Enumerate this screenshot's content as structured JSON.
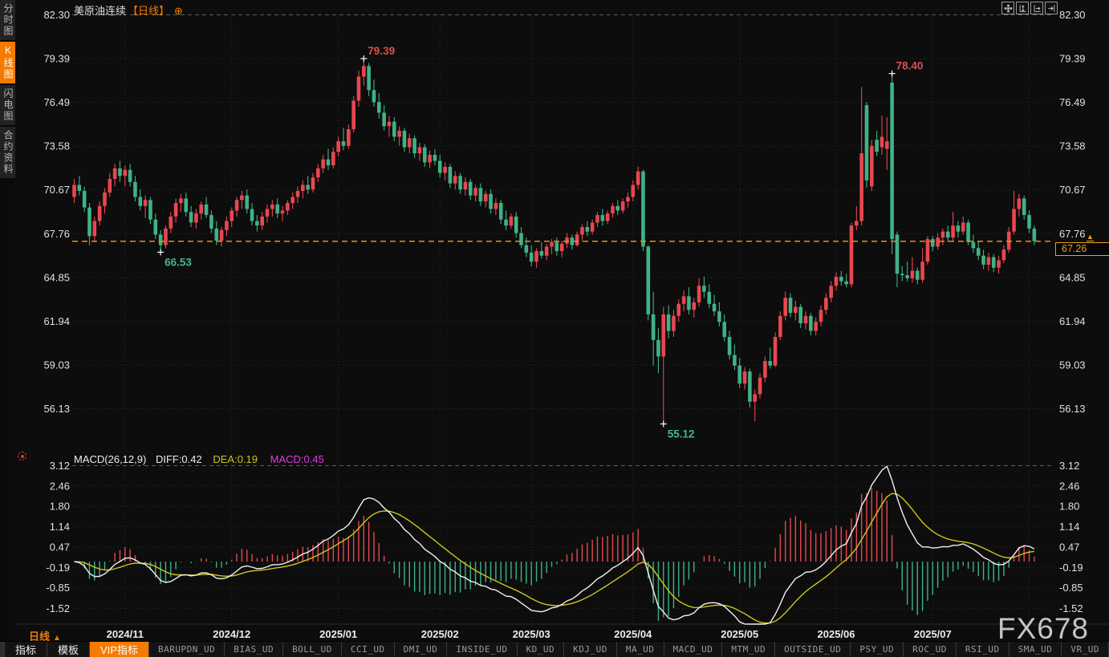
{
  "header": {
    "title": "美原油连续",
    "period_tag": "【日线】",
    "expand_icon": "⊕"
  },
  "sidebar": {
    "tabs": [
      {
        "label": "分时图",
        "active": false
      },
      {
        "label": "K线图",
        "active": true
      },
      {
        "label": "闪电图",
        "active": false
      },
      {
        "label": "合约资料",
        "active": false
      }
    ]
  },
  "toolbar_icons": [
    {
      "name": "pan-crosshair"
    },
    {
      "name": "fit-vertical-axis"
    },
    {
      "name": "fit-horizontal-axis"
    },
    {
      "name": "goto-latest"
    }
  ],
  "macd_header": {
    "name": "MACD(26,12,9)",
    "diff": "DIFF:0.42",
    "dea": "DEA:0.19",
    "macd": "MACD:0.45"
  },
  "price_badge": {
    "value": "67.26",
    "marker": "▲"
  },
  "timeframe_label": {
    "text": "日线",
    "arrow": "▲"
  },
  "watermark": "FX678",
  "bottom_bar": {
    "tabs": [
      {
        "label": "指标",
        "type": "plain"
      },
      {
        "label": "模板",
        "type": "plain"
      },
      {
        "label": "VIP指标",
        "type": "vip"
      },
      {
        "label": "BARUPDN_UD",
        "type": "ud"
      },
      {
        "label": "BIAS_UD",
        "type": "ud"
      },
      {
        "label": "BOLL_UD",
        "type": "ud"
      },
      {
        "label": "CCI_UD",
        "type": "ud"
      },
      {
        "label": "DMI_UD",
        "type": "ud"
      },
      {
        "label": "INSIDE_UD",
        "type": "ud"
      },
      {
        "label": "KD_UD",
        "type": "ud"
      },
      {
        "label": "KDJ_UD",
        "type": "ud"
      },
      {
        "label": "MA_UD",
        "type": "ud"
      },
      {
        "label": "MACD_UD",
        "type": "ud"
      },
      {
        "label": "MTM_UD",
        "type": "ud"
      },
      {
        "label": "OUTSIDE_UD",
        "type": "ud"
      },
      {
        "label": "PSY_UD",
        "type": "ud"
      },
      {
        "label": "ROC_UD",
        "type": "ud"
      },
      {
        "label": "RSI_UD",
        "type": "ud"
      },
      {
        "label": "SMA_UD",
        "type": "ud"
      },
      {
        "label": "VR_UD",
        "type": "ud"
      }
    ]
  },
  "colors": {
    "up": "#e8474f",
    "down": "#3fb286",
    "accent_orange": "#f57a00",
    "current_price_line": "#f08c1e",
    "badge_orange": "#f0a020",
    "diff_line": "#f0f0f0",
    "dea_line": "#cdc51f",
    "macd_value_magenta": "#dd3ddd",
    "annotation_red": "#d95050",
    "annotation_green": "#45b888",
    "grid": "#2d2d2d",
    "separator_dash": "#5e5e5e",
    "axis_text": "#e0e0e0"
  },
  "chart_data": {
    "type": "candlestick+macd",
    "symbol": "美原油连续",
    "period": "日线",
    "price_axis_ticks": [
      "82.30",
      "79.39",
      "76.49",
      "73.58",
      "70.67",
      "67.76",
      "64.85",
      "61.94",
      "59.03",
      "56.13"
    ],
    "macd_axis_ticks": [
      "3.12",
      "2.46",
      "1.80",
      "1.14",
      "0.47",
      "-0.19",
      "-0.85",
      "-1.52"
    ],
    "x_axis_labels": [
      {
        "label": "2024/11",
        "index": 10
      },
      {
        "label": "2024/12",
        "index": 31
      },
      {
        "label": "2025/01",
        "index": 52
      },
      {
        "label": "2025/02",
        "index": 72
      },
      {
        "label": "2025/03",
        "index": 90
      },
      {
        "label": "2025/04",
        "index": 110
      },
      {
        "label": "2025/05",
        "index": 131
      },
      {
        "label": "2025/06",
        "index": 150
      },
      {
        "label": "2025/07",
        "index": 169
      },
      {
        "label": "",
        "index": 188
      }
    ],
    "current_price": 67.26,
    "annotations": [
      {
        "text": "79.39",
        "index": 57,
        "price": 79.39,
        "color": "#d95050",
        "pos": "above"
      },
      {
        "text": "66.53",
        "index": 17,
        "price": 66.53,
        "color": "#45b888",
        "pos": "below"
      },
      {
        "text": "78.40",
        "index": 161,
        "price": 78.4,
        "color": "#d95050",
        "pos": "above"
      },
      {
        "text": "55.12",
        "index": 116,
        "price": 55.12,
        "color": "#45b888",
        "pos": "below"
      }
    ],
    "macd_params": {
      "slow": 26,
      "fast": 12,
      "signal": 9,
      "diff": 0.42,
      "dea": 0.19,
      "macd": 0.45
    },
    "ohlc": [
      [
        70.2,
        71.4,
        69.8,
        71.0
      ],
      [
        71.0,
        71.6,
        70.3,
        70.6
      ],
      [
        70.6,
        70.9,
        69.2,
        69.5
      ],
      [
        69.5,
        69.8,
        67.0,
        67.6
      ],
      [
        67.6,
        68.9,
        67.2,
        68.6
      ],
      [
        68.6,
        69.9,
        68.3,
        69.6
      ],
      [
        69.6,
        70.8,
        69.1,
        70.5
      ],
      [
        70.5,
        71.8,
        70.2,
        71.4
      ],
      [
        71.4,
        72.4,
        70.9,
        72.1
      ],
      [
        72.1,
        72.6,
        71.2,
        71.6
      ],
      [
        71.6,
        72.3,
        70.9,
        72.0
      ],
      [
        72.0,
        72.4,
        70.9,
        71.2
      ],
      [
        71.2,
        71.6,
        69.9,
        70.2
      ],
      [
        70.2,
        70.7,
        69.3,
        69.6
      ],
      [
        69.6,
        70.3,
        68.8,
        70.0
      ],
      [
        70.0,
        70.2,
        68.4,
        68.7
      ],
      [
        68.7,
        69.1,
        67.4,
        67.7
      ],
      [
        67.7,
        68.0,
        66.53,
        67.0
      ],
      [
        67.0,
        68.3,
        66.8,
        68.1
      ],
      [
        68.1,
        69.2,
        67.8,
        68.9
      ],
      [
        68.9,
        70.1,
        68.5,
        69.8
      ],
      [
        69.8,
        70.4,
        69.2,
        70.1
      ],
      [
        70.1,
        70.5,
        68.9,
        69.2
      ],
      [
        69.2,
        69.6,
        68.2,
        68.5
      ],
      [
        68.5,
        69.4,
        68.1,
        69.1
      ],
      [
        69.1,
        69.9,
        68.7,
        69.7
      ],
      [
        69.7,
        70.2,
        68.8,
        69.0
      ],
      [
        69.0,
        69.3,
        67.8,
        68.1
      ],
      [
        68.1,
        68.6,
        67.0,
        67.3
      ],
      [
        67.3,
        68.2,
        66.9,
        68.0
      ],
      [
        68.0,
        68.9,
        67.6,
        68.6
      ],
      [
        68.6,
        69.5,
        68.2,
        69.3
      ],
      [
        69.3,
        70.2,
        68.9,
        70.0
      ],
      [
        70.0,
        70.6,
        69.4,
        70.3
      ],
      [
        70.3,
        70.7,
        69.1,
        69.4
      ],
      [
        69.4,
        69.8,
        68.3,
        68.6
      ],
      [
        68.6,
        69.0,
        67.9,
        68.3
      ],
      [
        68.3,
        69.2,
        68.0,
        68.9
      ],
      [
        68.9,
        69.7,
        68.5,
        69.4
      ],
      [
        69.4,
        70.0,
        68.9,
        69.7
      ],
      [
        69.7,
        70.1,
        68.8,
        69.1
      ],
      [
        69.1,
        69.6,
        68.6,
        69.3
      ],
      [
        69.3,
        70.0,
        69.0,
        69.8
      ],
      [
        69.8,
        70.5,
        69.4,
        70.2
      ],
      [
        70.2,
        70.9,
        69.8,
        70.6
      ],
      [
        70.6,
        71.3,
        70.1,
        71.0
      ],
      [
        71.0,
        71.6,
        70.4,
        70.7
      ],
      [
        70.7,
        71.8,
        70.5,
        71.5
      ],
      [
        71.5,
        72.4,
        71.2,
        72.1
      ],
      [
        72.1,
        73.0,
        71.8,
        72.7
      ],
      [
        72.7,
        73.4,
        72.0,
        72.3
      ],
      [
        72.3,
        73.5,
        72.1,
        73.2
      ],
      [
        73.2,
        74.2,
        72.9,
        73.9
      ],
      [
        73.9,
        74.8,
        73.3,
        73.6
      ],
      [
        73.6,
        75.0,
        73.4,
        74.7
      ],
      [
        74.7,
        76.9,
        74.5,
        76.6
      ],
      [
        76.6,
        78.6,
        76.2,
        78.2
      ],
      [
        78.2,
        79.39,
        77.6,
        78.9
      ],
      [
        78.9,
        79.1,
        76.9,
        77.3
      ],
      [
        77.3,
        78.0,
        76.2,
        76.5
      ],
      [
        76.5,
        77.1,
        75.4,
        75.8
      ],
      [
        75.8,
        76.3,
        74.6,
        74.9
      ],
      [
        74.9,
        75.6,
        74.2,
        75.2
      ],
      [
        75.2,
        75.5,
        73.9,
        74.2
      ],
      [
        74.2,
        74.9,
        73.6,
        74.6
      ],
      [
        74.6,
        74.8,
        73.2,
        73.5
      ],
      [
        73.5,
        74.4,
        73.1,
        74.1
      ],
      [
        74.1,
        74.3,
        72.8,
        73.1
      ],
      [
        73.1,
        73.8,
        72.6,
        73.5
      ],
      [
        73.5,
        73.7,
        72.2,
        72.5
      ],
      [
        72.5,
        73.3,
        72.1,
        73.0
      ],
      [
        73.0,
        73.4,
        72.3,
        72.6
      ],
      [
        72.6,
        73.0,
        71.5,
        71.8
      ],
      [
        71.8,
        72.5,
        71.3,
        72.2
      ],
      [
        72.2,
        72.4,
        70.8,
        71.1
      ],
      [
        71.1,
        71.9,
        70.7,
        71.6
      ],
      [
        71.6,
        71.8,
        70.4,
        70.7
      ],
      [
        70.7,
        71.5,
        70.3,
        71.2
      ],
      [
        71.2,
        71.4,
        70.0,
        70.3
      ],
      [
        70.3,
        71.0,
        69.9,
        70.8
      ],
      [
        70.8,
        71.1,
        69.6,
        69.9
      ],
      [
        69.9,
        70.6,
        69.5,
        70.4
      ],
      [
        70.4,
        70.7,
        69.1,
        69.4
      ],
      [
        69.4,
        70.1,
        69.0,
        69.8
      ],
      [
        69.8,
        70.0,
        68.4,
        68.7
      ],
      [
        68.7,
        69.3,
        68.0,
        68.3
      ],
      [
        68.3,
        69.1,
        68.1,
        68.9
      ],
      [
        68.9,
        69.2,
        67.5,
        67.8
      ],
      [
        67.8,
        68.2,
        66.8,
        67.0
      ],
      [
        67.0,
        67.5,
        66.2,
        66.5
      ],
      [
        66.5,
        67.0,
        65.6,
        65.9
      ],
      [
        65.9,
        66.8,
        65.5,
        66.6
      ],
      [
        66.6,
        67.2,
        66.1,
        66.3
      ],
      [
        66.3,
        67.1,
        66.0,
        66.9
      ],
      [
        66.9,
        67.4,
        66.4,
        67.2
      ],
      [
        67.2,
        67.5,
        66.3,
        66.6
      ],
      [
        66.6,
        67.3,
        66.2,
        67.1
      ],
      [
        67.1,
        67.8,
        66.8,
        67.5
      ],
      [
        67.5,
        67.7,
        66.7,
        67.0
      ],
      [
        67.0,
        67.9,
        66.9,
        67.7
      ],
      [
        67.7,
        68.4,
        67.3,
        68.2
      ],
      [
        68.2,
        68.6,
        67.6,
        67.9
      ],
      [
        67.9,
        68.7,
        67.7,
        68.5
      ],
      [
        68.5,
        69.2,
        68.2,
        69.0
      ],
      [
        69.0,
        69.4,
        68.3,
        68.6
      ],
      [
        68.6,
        69.3,
        68.4,
        69.1
      ],
      [
        69.1,
        69.8,
        68.8,
        69.6
      ],
      [
        69.6,
        70.0,
        69.0,
        69.3
      ],
      [
        69.3,
        70.1,
        69.1,
        69.9
      ],
      [
        69.9,
        70.5,
        69.5,
        70.2
      ],
      [
        70.2,
        71.3,
        69.9,
        71.0
      ],
      [
        71.0,
        72.2,
        70.7,
        71.9
      ],
      [
        71.9,
        72.0,
        66.6,
        66.9
      ],
      [
        66.9,
        67.0,
        62.0,
        62.4
      ],
      [
        62.4,
        63.9,
        59.0,
        60.7
      ],
      [
        60.7,
        61.5,
        58.5,
        59.6
      ],
      [
        59.6,
        62.9,
        55.12,
        62.4
      ],
      [
        62.4,
        63.0,
        60.8,
        61.3
      ],
      [
        61.3,
        62.7,
        60.9,
        62.3
      ],
      [
        62.3,
        63.4,
        61.9,
        63.1
      ],
      [
        63.1,
        64.0,
        62.6,
        63.6
      ],
      [
        63.6,
        64.2,
        62.4,
        62.7
      ],
      [
        62.7,
        63.5,
        62.2,
        63.2
      ],
      [
        63.2,
        64.8,
        62.9,
        64.3
      ],
      [
        64.3,
        64.9,
        63.5,
        63.9
      ],
      [
        63.9,
        64.4,
        62.8,
        63.1
      ],
      [
        63.1,
        63.7,
        62.3,
        62.6
      ],
      [
        62.6,
        63.2,
        61.6,
        61.9
      ],
      [
        61.9,
        62.4,
        60.6,
        60.9
      ],
      [
        60.9,
        61.3,
        59.4,
        59.7
      ],
      [
        59.7,
        60.4,
        58.7,
        59.0
      ],
      [
        59.0,
        59.5,
        57.5,
        57.8
      ],
      [
        57.8,
        58.9,
        57.4,
        58.6
      ],
      [
        58.6,
        58.8,
        56.2,
        56.6
      ],
      [
        56.6,
        57.4,
        55.3,
        57.1
      ],
      [
        57.1,
        58.5,
        56.8,
        58.2
      ],
      [
        58.2,
        59.6,
        57.9,
        59.3
      ],
      [
        59.3,
        60.2,
        58.8,
        59.0
      ],
      [
        59.0,
        61.2,
        58.9,
        60.9
      ],
      [
        60.9,
        62.6,
        60.7,
        62.3
      ],
      [
        62.3,
        63.9,
        62.0,
        63.5
      ],
      [
        63.5,
        63.8,
        62.2,
        62.5
      ],
      [
        62.5,
        63.3,
        62.0,
        62.9
      ],
      [
        62.9,
        63.1,
        61.5,
        61.8
      ],
      [
        61.8,
        62.6,
        61.4,
        62.3
      ],
      [
        62.3,
        62.5,
        61.0,
        61.3
      ],
      [
        61.3,
        62.2,
        61.0,
        61.9
      ],
      [
        61.9,
        63.0,
        61.6,
        62.7
      ],
      [
        62.7,
        63.8,
        62.4,
        63.5
      ],
      [
        63.5,
        64.6,
        63.2,
        64.3
      ],
      [
        64.3,
        65.2,
        64.0,
        64.9
      ],
      [
        64.9,
        65.3,
        64.3,
        64.6
      ],
      [
        64.6,
        65.1,
        64.2,
        64.4
      ],
      [
        64.4,
        68.5,
        64.2,
        68.3
      ],
      [
        68.3,
        69.6,
        68.0,
        68.6
      ],
      [
        68.6,
        77.5,
        68.3,
        73.1
      ],
      [
        76.3,
        76.5,
        70.8,
        71.3
      ],
      [
        70.9,
        74.0,
        70.6,
        73.6
      ],
      [
        74.0,
        74.6,
        72.9,
        73.2
      ],
      [
        73.5,
        75.6,
        73.0,
        74.2
      ],
      [
        73.4,
        75.5,
        72.0,
        73.9
      ],
      [
        77.8,
        78.4,
        66.4,
        67.4
      ],
      [
        67.7,
        67.9,
        64.2,
        65.1
      ],
      [
        65.1,
        65.6,
        64.6,
        65.0
      ],
      [
        65.0,
        65.9,
        64.6,
        64.8
      ],
      [
        64.8,
        66.2,
        64.5,
        65.3
      ],
      [
        65.3,
        65.5,
        64.4,
        64.7
      ],
      [
        64.7,
        66.8,
        64.5,
        65.9
      ],
      [
        65.9,
        67.6,
        65.7,
        67.4
      ],
      [
        67.4,
        67.6,
        66.6,
        66.9
      ],
      [
        66.9,
        67.8,
        66.7,
        67.5
      ],
      [
        67.5,
        68.1,
        67.0,
        67.9
      ],
      [
        67.9,
        68.3,
        67.2,
        67.5
      ],
      [
        67.5,
        69.2,
        67.3,
        68.3
      ],
      [
        68.3,
        68.6,
        67.5,
        67.9
      ],
      [
        67.9,
        68.9,
        67.7,
        68.5
      ],
      [
        68.5,
        68.7,
        67.0,
        67.2
      ],
      [
        67.2,
        67.7,
        66.5,
        66.8
      ],
      [
        66.8,
        67.3,
        66.0,
        66.3
      ],
      [
        66.3,
        66.7,
        65.4,
        65.7
      ],
      [
        65.7,
        66.5,
        65.3,
        66.2
      ],
      [
        66.2,
        66.4,
        65.2,
        65.5
      ],
      [
        65.5,
        66.3,
        65.1,
        66.0
      ],
      [
        66.0,
        67.0,
        65.8,
        66.7
      ],
      [
        66.7,
        68.2,
        66.5,
        67.9
      ],
      [
        67.9,
        70.6,
        67.7,
        69.4
      ],
      [
        69.4,
        70.4,
        68.9,
        70.1
      ],
      [
        70.1,
        70.3,
        68.7,
        69.0
      ],
      [
        69.0,
        69.3,
        67.8,
        68.1
      ],
      [
        68.1,
        68.3,
        67.0,
        67.26
      ]
    ]
  }
}
